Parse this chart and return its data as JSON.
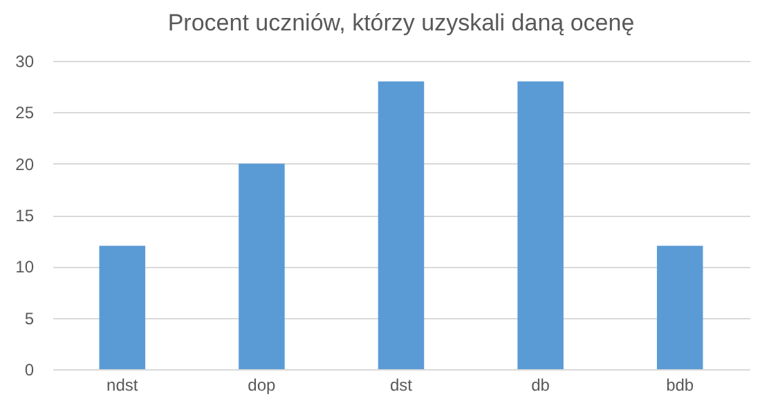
{
  "chart_data": {
    "type": "bar",
    "title": "Procent uczniów, którzy uzyskali daną ocenę",
    "categories": [
      "ndst",
      "dop",
      "dst",
      "db",
      "bdb"
    ],
    "values": [
      12,
      20,
      28,
      28,
      12
    ],
    "color": "#5b9bd5",
    "ylim": [
      0,
      30
    ],
    "yticks": [
      0,
      5,
      10,
      15,
      20,
      25,
      30
    ],
    "grid": "y"
  }
}
